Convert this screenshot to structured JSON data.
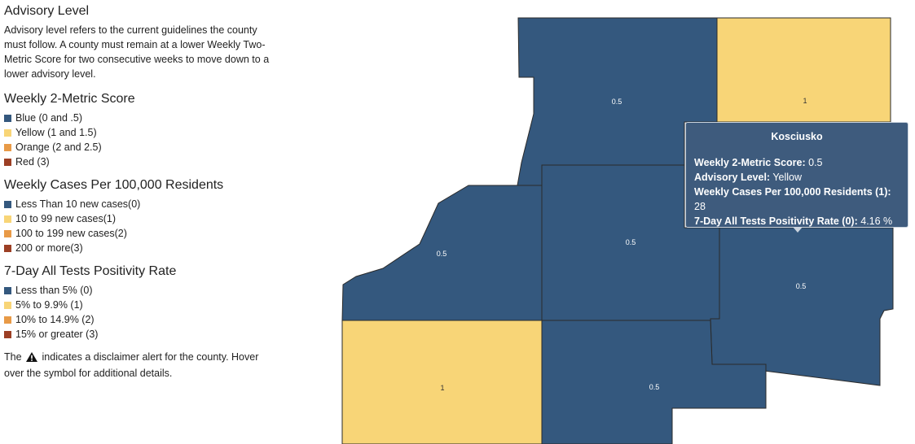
{
  "legend": {
    "advisory": {
      "title": "Advisory Level",
      "description": "Advisory level refers to the current guidelines the county must follow. A county must remain at a lower Weekly Two-Metric Score for two consecutive weeks to move down to a lower advisory level."
    },
    "metric_score": {
      "title": "Weekly 2-Metric Score",
      "items": [
        {
          "label": "Blue (0 and .5)",
          "color": "#34587e"
        },
        {
          "label": "Yellow (1 and 1.5)",
          "color": "#f8d577"
        },
        {
          "label": "Orange (2 and 2.5)",
          "color": "#e89a47"
        },
        {
          "label": "Red (3)",
          "color": "#9c3f24"
        }
      ]
    },
    "weekly_cases": {
      "title": "Weekly Cases Per 100,000 Residents",
      "items": [
        {
          "label": "Less Than 10 new cases(0)",
          "color": "#34587e"
        },
        {
          "label": "10 to 99 new cases(1)",
          "color": "#f8d577"
        },
        {
          "label": "100 to 199 new cases(2)",
          "color": "#e89a47"
        },
        {
          "label": "200 or more(3)",
          "color": "#9c3f24"
        }
      ]
    },
    "positivity": {
      "title": "7-Day All Tests Positivity Rate",
      "items": [
        {
          "label": "Less than 5% (0)",
          "color": "#34587e"
        },
        {
          "label": "5% to 9.9% (1)",
          "color": "#f8d577"
        },
        {
          "label": "10% to 14.9% (2)",
          "color": "#e89a47"
        },
        {
          "label": "15% or greater (3)",
          "color": "#9c3f24"
        }
      ]
    },
    "disclaimer": {
      "before": "The",
      "after": "indicates a disclaimer alert for the county. Hover over the symbol for additional details.",
      "icon": "warning-icon"
    }
  },
  "map": {
    "colors": {
      "blue": "#34587e",
      "yellow": "#f8d577",
      "border": "#2a2a2a"
    },
    "counties": [
      {
        "id": "north-center",
        "score": "0.5",
        "color": "blue"
      },
      {
        "id": "northeast",
        "score": "1",
        "color": "yellow"
      },
      {
        "id": "west",
        "score": "0.5",
        "color": "blue"
      },
      {
        "id": "center",
        "score": "0.5",
        "color": "blue"
      },
      {
        "id": "kosciusko",
        "score": "0.5",
        "color": "blue"
      },
      {
        "id": "southwest",
        "score": "1",
        "color": "yellow"
      },
      {
        "id": "south-center",
        "score": "0.5",
        "color": "blue"
      }
    ]
  },
  "tooltip": {
    "county": "Kosciusko",
    "rows": [
      {
        "label": "Weekly 2-Metric Score:",
        "value": "0.5"
      },
      {
        "label": "Advisory Level:",
        "value": "Yellow"
      },
      {
        "label": "Weekly Cases Per 100,000 Residents (1):",
        "value": "28"
      },
      {
        "label": "7-Day All Tests Positivity Rate (0):",
        "value": "4.16 %"
      }
    ]
  }
}
